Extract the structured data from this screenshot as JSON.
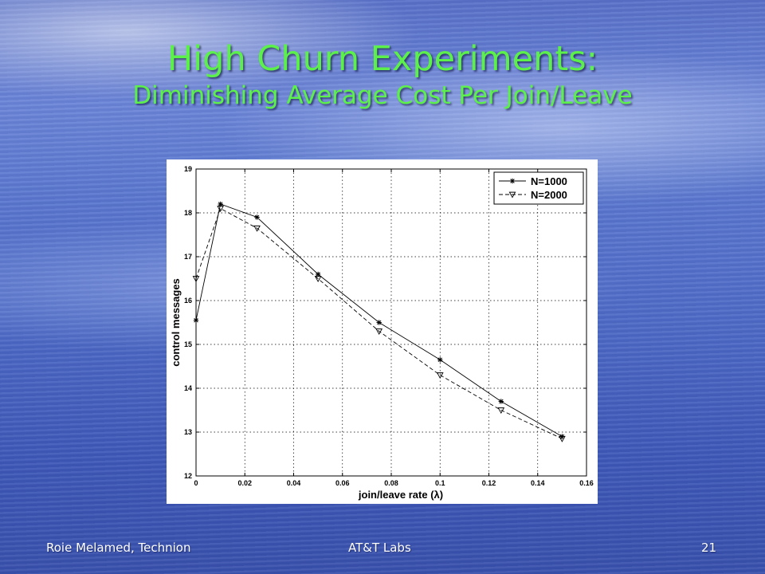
{
  "slide": {
    "title": "High Churn Experiments:",
    "subtitle": "Diminishing Average Cost Per Join/Leave",
    "footer_left": "Roie Melamed, Technion",
    "footer_center": "AT&T Labs",
    "slide_number": "21"
  },
  "chart_data": {
    "type": "line",
    "xlabel": "join/leave rate (λ)",
    "ylabel": "control messages",
    "xlim": [
      0,
      0.16
    ],
    "ylim": [
      12,
      19
    ],
    "x_ticks": [
      "0",
      "0.02",
      "0.04",
      "0.06",
      "0.08",
      "0.1",
      "0.12",
      "0.14",
      "0.16"
    ],
    "y_ticks": [
      "12",
      "13",
      "14",
      "15",
      "16",
      "17",
      "18",
      "19"
    ],
    "grid": true,
    "legend_position": "top-right",
    "series": [
      {
        "name": "N=1000",
        "line_style": "solid",
        "marker": "star",
        "x": [
          0,
          0.01,
          0.025,
          0.05,
          0.075,
          0.1,
          0.125,
          0.15
        ],
        "y": [
          15.55,
          18.2,
          17.9,
          16.6,
          15.5,
          14.65,
          13.7,
          12.9
        ]
      },
      {
        "name": "N=2000",
        "line_style": "dashed",
        "marker": "triangle-down",
        "x": [
          0,
          0.01,
          0.025,
          0.05,
          0.075,
          0.1,
          0.125,
          0.15
        ],
        "y": [
          16.5,
          18.1,
          17.65,
          16.5,
          15.3,
          14.3,
          13.5,
          12.85
        ]
      }
    ]
  }
}
